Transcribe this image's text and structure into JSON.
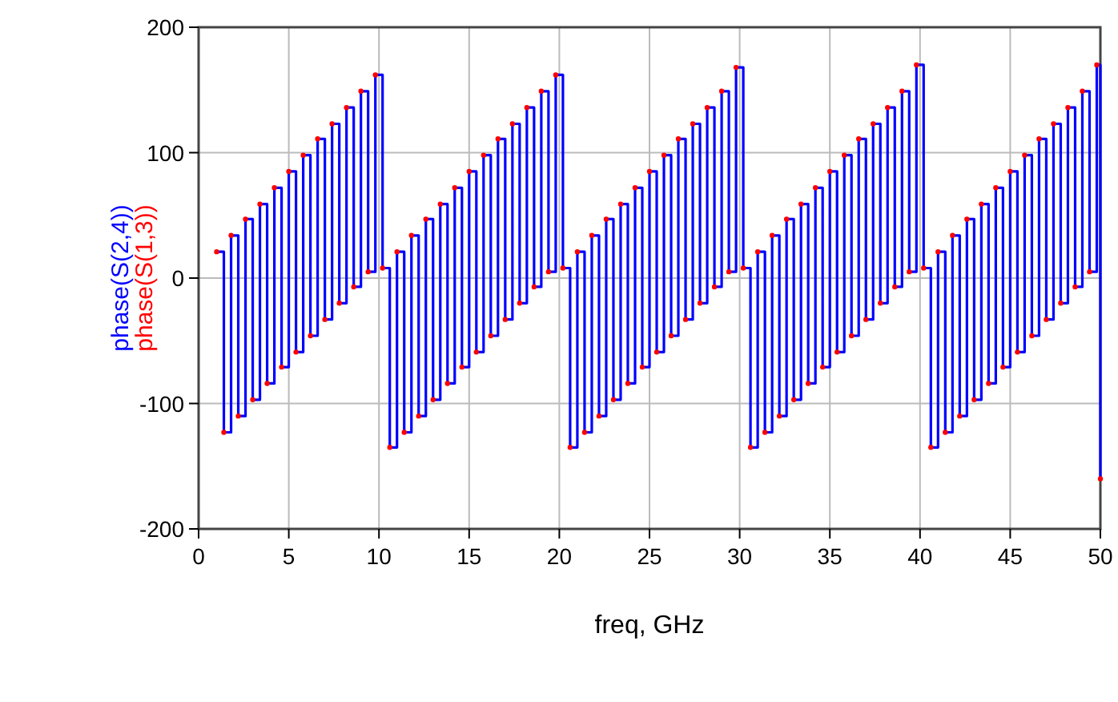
{
  "chart_data": {
    "type": "step",
    "xlabel": "freq, GHz",
    "legend": "left",
    "grid": true,
    "xlim": [
      0,
      50
    ],
    "xticks": [
      0,
      5,
      10,
      15,
      20,
      25,
      30,
      35,
      40,
      45,
      50
    ],
    "ylim": [
      -200,
      200
    ],
    "yticks": [
      -200,
      -100,
      0,
      100,
      200
    ],
    "x": [
      1.0,
      1.4,
      1.8,
      2.2,
      2.6,
      3.0,
      3.4,
      3.8,
      4.2,
      4.6,
      5.0,
      5.4,
      5.8,
      6.2,
      6.6,
      7.0,
      7.4,
      7.8,
      8.2,
      8.6,
      9.0,
      9.4,
      9.8,
      10.2,
      10.6,
      11.0,
      11.4,
      11.8,
      12.2,
      12.6,
      13.0,
      13.4,
      13.8,
      14.2,
      14.6,
      15.0,
      15.4,
      15.8,
      16.2,
      16.6,
      17.0,
      17.4,
      17.8,
      18.2,
      18.6,
      19.0,
      19.4,
      19.8,
      20.2,
      20.6,
      21.0,
      21.4,
      21.8,
      22.2,
      22.6,
      23.0,
      23.4,
      23.8,
      24.2,
      24.6,
      25.0,
      25.4,
      25.8,
      26.2,
      26.6,
      27.0,
      27.4,
      27.8,
      28.2,
      28.6,
      29.0,
      29.4,
      29.8,
      30.2,
      30.6,
      31.0,
      31.4,
      31.8,
      32.2,
      32.6,
      33.0,
      33.4,
      33.8,
      34.2,
      34.6,
      35.0,
      35.4,
      35.8,
      36.2,
      36.6,
      37.0,
      37.4,
      37.8,
      38.2,
      38.6,
      39.0,
      39.4,
      39.8,
      40.2,
      40.6,
      41.0,
      41.4,
      41.8,
      42.2,
      42.6,
      43.0,
      43.4,
      43.8,
      44.2,
      44.6,
      45.0,
      45.4,
      45.8,
      46.2,
      46.6,
      47.0,
      47.4,
      47.8,
      48.2,
      48.6,
      49.0,
      49.4,
      49.8,
      50
    ],
    "series": [
      {
        "name": "phase(S(1,3))",
        "type": "scatter",
        "marker": "circle",
        "color": "#ff0000",
        "values": [
          21,
          -123,
          34,
          -110,
          47,
          -97,
          59,
          -84,
          72,
          -71,
          85,
          -59,
          98,
          -46,
          111,
          -33,
          123,
          -20,
          136,
          -7,
          149,
          5,
          162,
          8,
          -135,
          21,
          -123,
          34,
          -110,
          47,
          -97,
          59,
          -84,
          72,
          -71,
          85,
          -59,
          98,
          -46,
          111,
          -33,
          123,
          -20,
          136,
          -7,
          149,
          5,
          162,
          8,
          -135,
          21,
          -123,
          34,
          -110,
          47,
          -97,
          59,
          -84,
          72,
          -71,
          85,
          -59,
          98,
          -46,
          111,
          -33,
          123,
          -20,
          136,
          -7,
          149,
          5,
          168,
          8,
          -135,
          21,
          -123,
          34,
          -110,
          47,
          -97,
          59,
          -84,
          72,
          -71,
          85,
          -59,
          98,
          -46,
          111,
          -33,
          123,
          -20,
          136,
          -7,
          149,
          5,
          170,
          8,
          -135,
          21,
          -123,
          34,
          -110,
          47,
          -97,
          59,
          -84,
          72,
          -71,
          85,
          -59,
          98,
          -46,
          111,
          -33,
          123,
          -20,
          136,
          -7,
          149,
          5,
          170,
          -160
        ]
      },
      {
        "name": "phase(S(2,4))",
        "color": "#0000ff",
        "values": [
          21,
          -123,
          34,
          -110,
          47,
          -97,
          59,
          -84,
          72,
          -71,
          85,
          -59,
          98,
          -46,
          111,
          -33,
          123,
          -20,
          136,
          -7,
          149,
          5,
          162,
          8,
          -135,
          21,
          -123,
          34,
          -110,
          47,
          -97,
          59,
          -84,
          72,
          -71,
          85,
          -59,
          98,
          -46,
          111,
          -33,
          123,
          -20,
          136,
          -7,
          149,
          5,
          162,
          8,
          -135,
          21,
          -123,
          34,
          -110,
          47,
          -97,
          59,
          -84,
          72,
          -71,
          85,
          -59,
          98,
          -46,
          111,
          -33,
          123,
          -20,
          136,
          -7,
          149,
          5,
          168,
          8,
          -135,
          21,
          -123,
          34,
          -110,
          47,
          -97,
          59,
          -84,
          72,
          -71,
          85,
          -59,
          98,
          -46,
          111,
          -33,
          123,
          -20,
          136,
          -7,
          149,
          5,
          170,
          8,
          -135,
          21,
          -123,
          34,
          -110,
          47,
          -97,
          59,
          -84,
          72,
          -71,
          85,
          -59,
          98,
          -46,
          111,
          -33,
          123,
          -20,
          136,
          -7,
          149,
          5,
          170,
          -160
        ]
      }
    ]
  }
}
